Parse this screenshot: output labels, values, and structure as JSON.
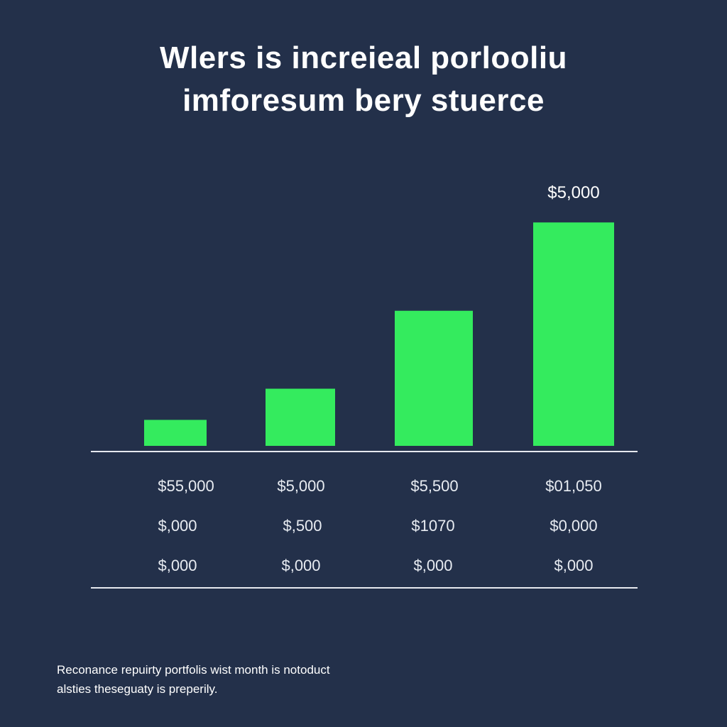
{
  "chart_data": {
    "type": "bar",
    "title_lines": [
      "Wlers is increieal porlooliu",
      "imforesum bery stuerce"
    ],
    "top_label": "$5,000",
    "values": [
      1.0,
      2.2,
      5.2,
      8.6
    ],
    "ylim": [
      0,
      8.8
    ],
    "bar_color": "#34eb5e",
    "value_rows": [
      [
        "$55,000",
        "$5,000",
        "$5,500",
        "$01,050"
      ],
      [
        "$,000",
        "$,500",
        "$1070",
        "$0,000"
      ],
      [
        "$,000",
        "$,000",
        "$,000",
        "$,000"
      ]
    ],
    "grid": false
  },
  "footnote": {
    "line1": "Reconance repuirty portfolis wist month is notoduct",
    "line2": "alsties theseguaty is preperily."
  },
  "colors": {
    "background": "#23304a",
    "bar": "#34eb5e",
    "axis": "#e6e9ef",
    "text": "#ffffff"
  }
}
